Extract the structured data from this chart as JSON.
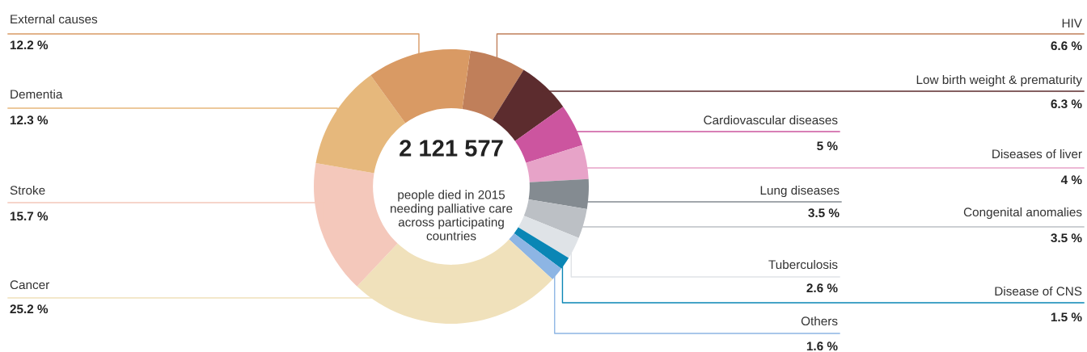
{
  "chart_data": {
    "type": "donut",
    "categories": [
      "HIV",
      "Low birth weight & prematurity",
      "Cardiovascular diseases",
      "Diseases of liver",
      "Lung diseases",
      "Congenital anomalies",
      "Tuberculosis",
      "Disease of CNS",
      "Others",
      "Cancer",
      "Stroke",
      "Dementia",
      "External causes"
    ],
    "values": [
      6.6,
      6.3,
      5,
      4,
      3.5,
      3.5,
      2.6,
      1.5,
      1.6,
      25.2,
      15.7,
      12.3,
      12.2
    ],
    "value_labels": [
      "6.6 %",
      "6.3 %",
      "5 %",
      "4 %",
      "3.5 %",
      "3.5 %",
      "2.6 %",
      "1.5 %",
      "1.6 %",
      "25.2 %",
      "15.7 %",
      "12.3 %",
      "12.2 %"
    ],
    "colors": [
      "#c07f5a",
      "#5c2c2e",
      "#cc559f",
      "#e7a3c8",
      "#848b91",
      "#bcc0c5",
      "#dfe3e7",
      "#0a86b5",
      "#8db5e4",
      "#f0e1bb",
      "#f4c8bb",
      "#e6b87c",
      "#d99a64"
    ],
    "annotations": [
      "2 121 577",
      "people died in 2015\nneeding palliative care\nacross participating\ncountries"
    ]
  }
}
